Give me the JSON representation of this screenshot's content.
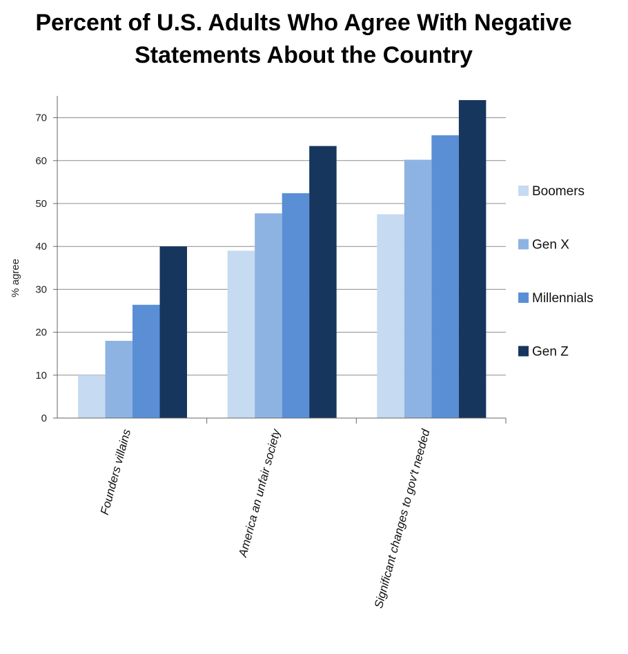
{
  "chart_data": {
    "type": "bar",
    "title_lines": [
      "Percent of U.S. Adults Who Agree With Negative",
      "Statements About the Country"
    ],
    "ylabel": "% agree",
    "xlabel": "",
    "ylim": [
      0,
      75
    ],
    "yticks": [
      0,
      10,
      20,
      30,
      40,
      50,
      60,
      70
    ],
    "grid": true,
    "legend_position": "right",
    "categories": [
      "Founders villains",
      "America an unfair society",
      "Significant changes to gov't needed"
    ],
    "series": [
      {
        "name": "Boomers",
        "color": "#c6daf1",
        "values": [
          10,
          39,
          47.5
        ]
      },
      {
        "name": "Gen X",
        "color": "#8db3e2",
        "values": [
          18,
          47.7,
          60.2
        ]
      },
      {
        "name": "Millennials",
        "color": "#5a8fd6",
        "values": [
          26.4,
          52.4,
          65.9
        ]
      },
      {
        "name": "Gen Z",
        "color": "#17365d",
        "values": [
          40,
          63.4,
          74.1
        ]
      }
    ]
  }
}
